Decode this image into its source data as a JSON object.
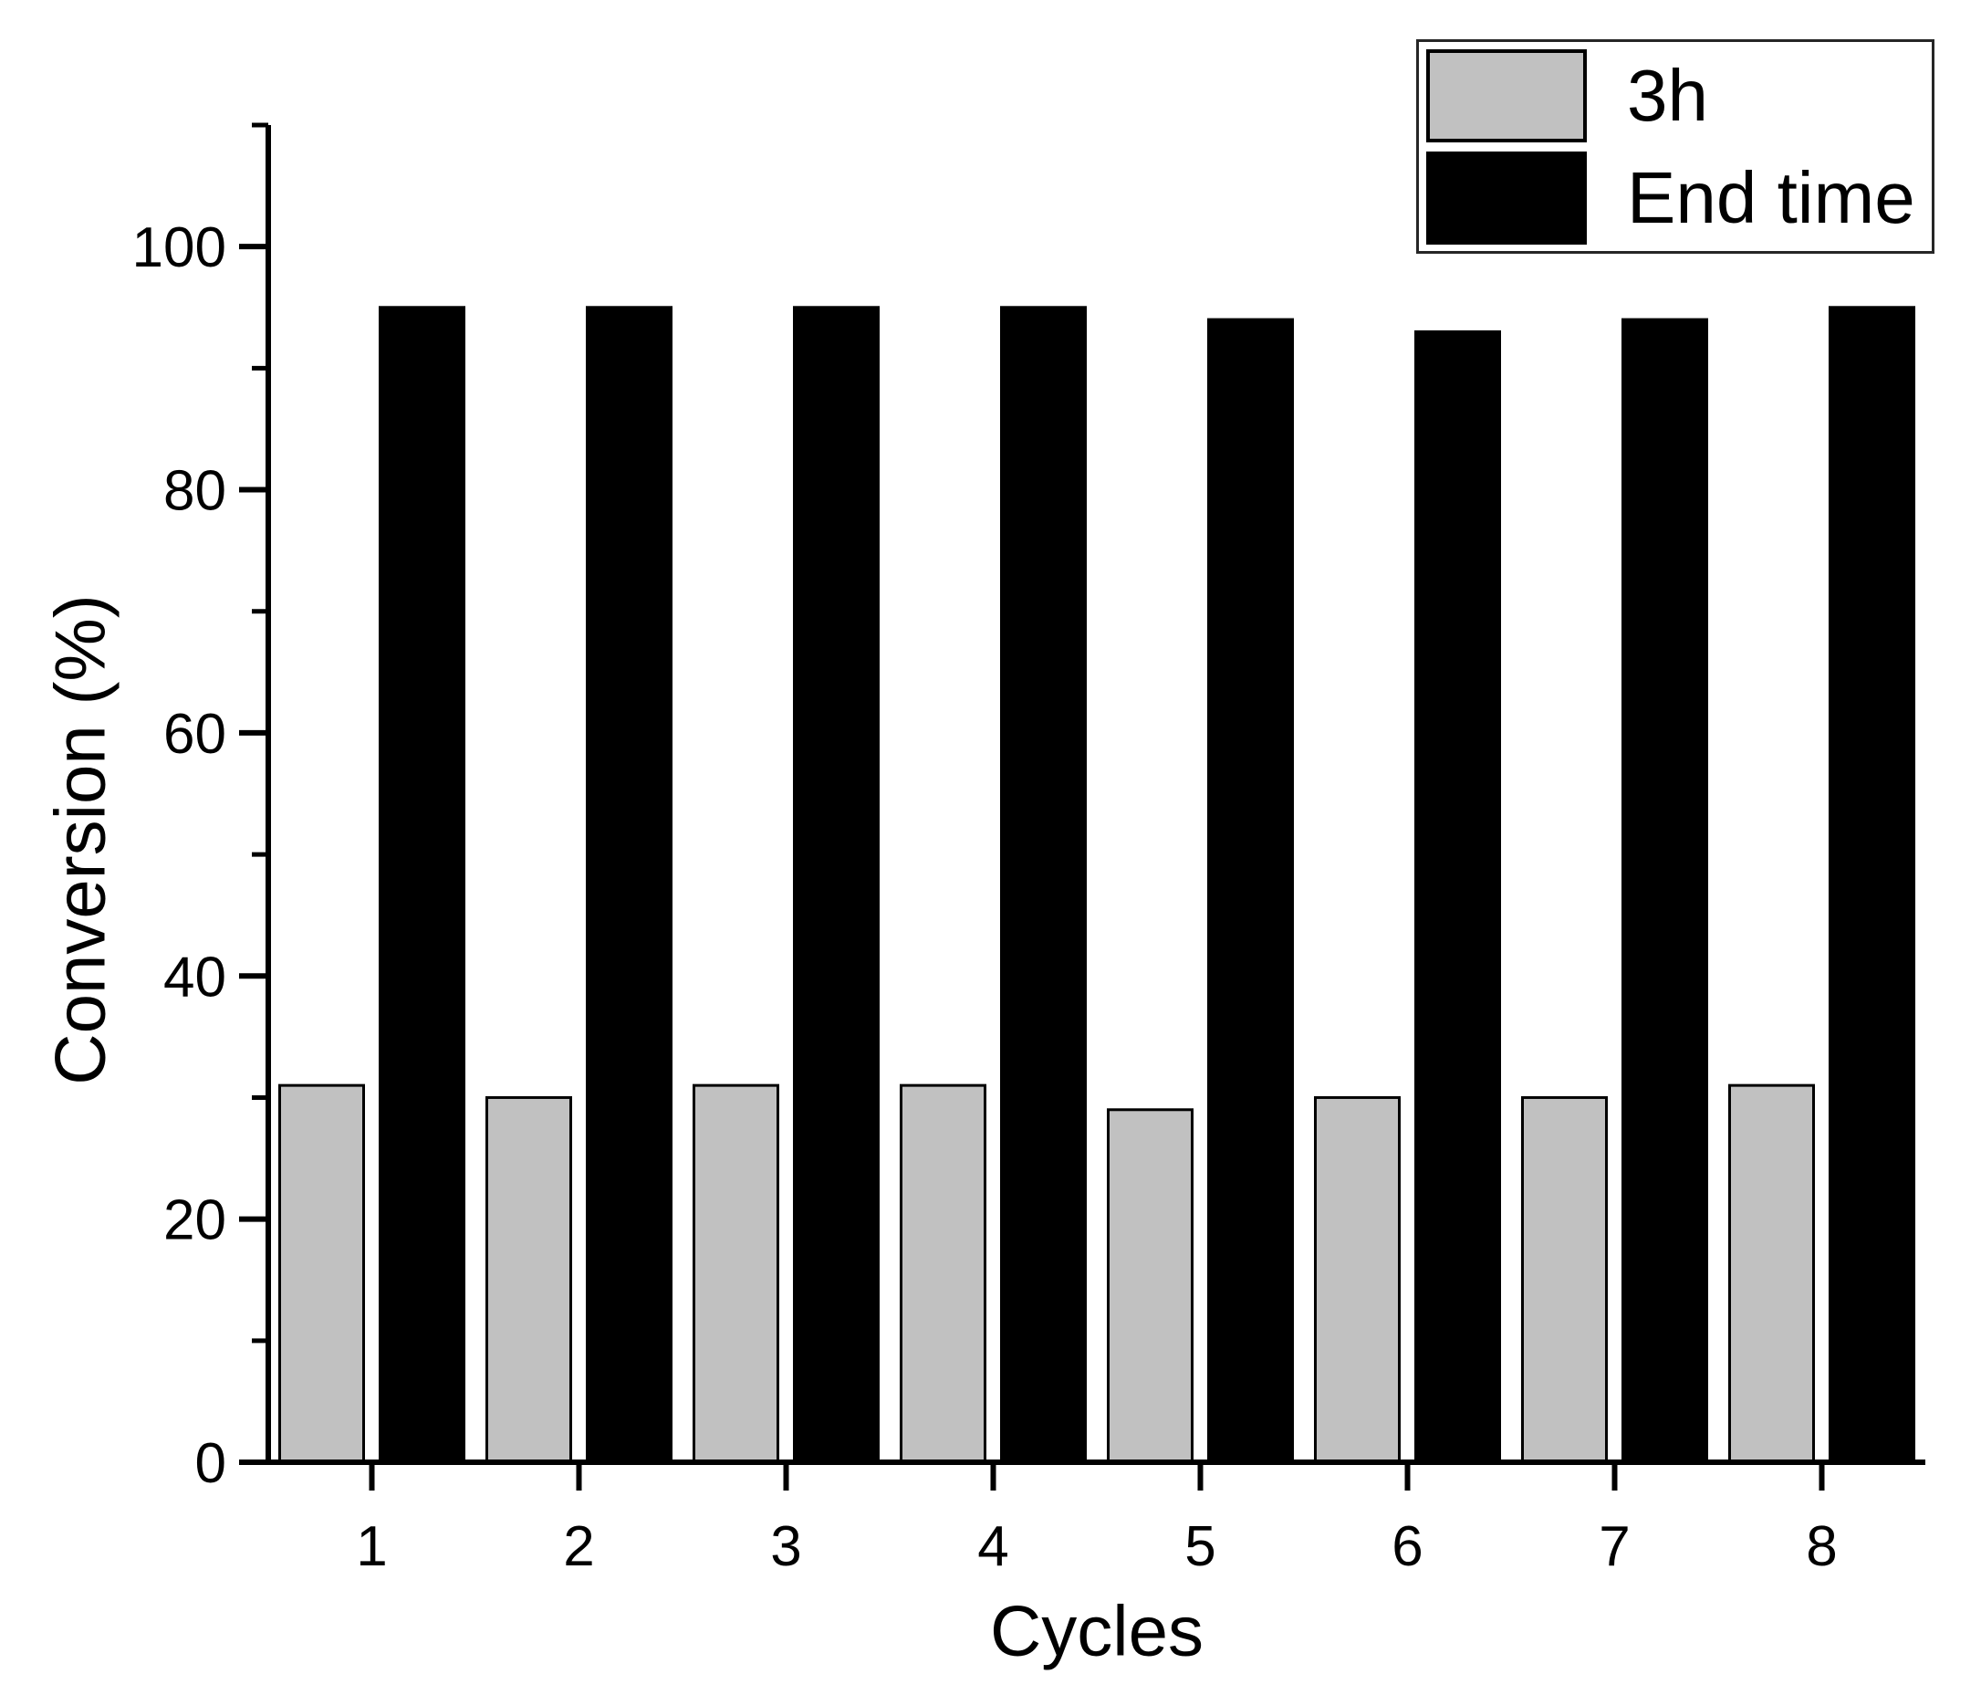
{
  "chart_data": {
    "type": "bar",
    "title": "",
    "xlabel": "Cycles",
    "ylabel": "Conversion (%)",
    "categories": [
      "1",
      "2",
      "3",
      "4",
      "5",
      "6",
      "7",
      "8"
    ],
    "series": [
      {
        "name": "3h",
        "color": "#c1c1c1",
        "values": [
          31,
          30,
          31,
          31,
          29,
          30,
          30,
          31
        ]
      },
      {
        "name": "End time",
        "color": "#000000",
        "values": [
          95,
          95,
          95,
          95,
          94,
          93,
          94,
          95
        ]
      }
    ],
    "ylim": [
      0,
      110
    ],
    "y_major_ticks": [
      0,
      20,
      40,
      60,
      80,
      100
    ],
    "y_minor_ticks": [
      10,
      30,
      50,
      70,
      90,
      110
    ],
    "grid": false,
    "legend_position": "top-right",
    "bar_outline_color": "#000000",
    "axis_color": "#000000"
  }
}
